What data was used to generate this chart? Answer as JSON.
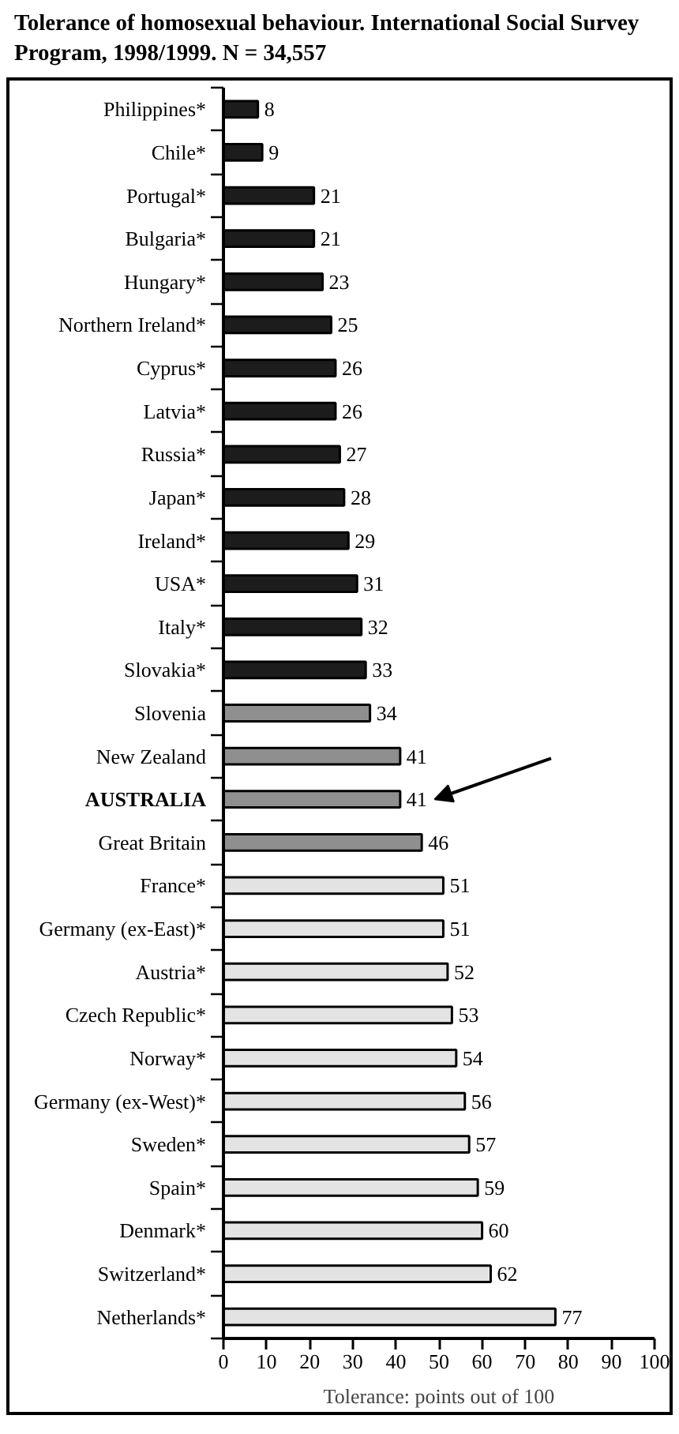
{
  "chart_data": {
    "type": "bar",
    "orientation": "horizontal",
    "title": "Tolerance of homosexual behaviour. International Social Survey Program, 1998/1999. N = 34,557",
    "xlabel": "Tolerance: points out of 100",
    "categories": [
      "Philippines*",
      "Chile*",
      "Portugal*",
      "Bulgaria*",
      "Hungary*",
      "Northern Ireland*",
      "Cyprus*",
      "Latvia*",
      "Russia*",
      "Japan*",
      "Ireland*",
      "USA*",
      "Italy*",
      "Slovakia*",
      "Slovenia",
      "New Zealand",
      "AUSTRALIA",
      "Great Britain",
      "France*",
      "Germany (ex-East)*",
      "Austria*",
      "Czech Republic*",
      "Norway*",
      "Germany (ex-West)*",
      "Sweden*",
      "Spain*",
      "Denmark*",
      "Switzerland*",
      "Netherlands*"
    ],
    "values": [
      8,
      9,
      21,
      21,
      23,
      25,
      26,
      26,
      27,
      28,
      29,
      31,
      32,
      33,
      34,
      41,
      41,
      46,
      51,
      51,
      52,
      53,
      54,
      56,
      57,
      59,
      60,
      62,
      77
    ],
    "colors": [
      "#1c1c1c",
      "#1c1c1c",
      "#1c1c1c",
      "#1c1c1c",
      "#1c1c1c",
      "#1c1c1c",
      "#1c1c1c",
      "#1c1c1c",
      "#1c1c1c",
      "#1c1c1c",
      "#1c1c1c",
      "#1c1c1c",
      "#1c1c1c",
      "#1c1c1c",
      "#8f8f8f",
      "#8f8f8f",
      "#8f8f8f",
      "#8f8f8f",
      "#e3e3e3",
      "#e3e3e3",
      "#e3e3e3",
      "#e3e3e3",
      "#e3e3e3",
      "#e3e3e3",
      "#e3e3e3",
      "#e3e3e3",
      "#e3e3e3",
      "#e3e3e3",
      "#e3e3e3"
    ],
    "xlim": [
      0,
      100
    ],
    "xticks": [
      0,
      10,
      20,
      30,
      40,
      50,
      60,
      70,
      80,
      90,
      100
    ],
    "data_labels": true,
    "grid": false,
    "annotations": [
      {
        "y": "AUSTRALIA"
      }
    ]
  }
}
